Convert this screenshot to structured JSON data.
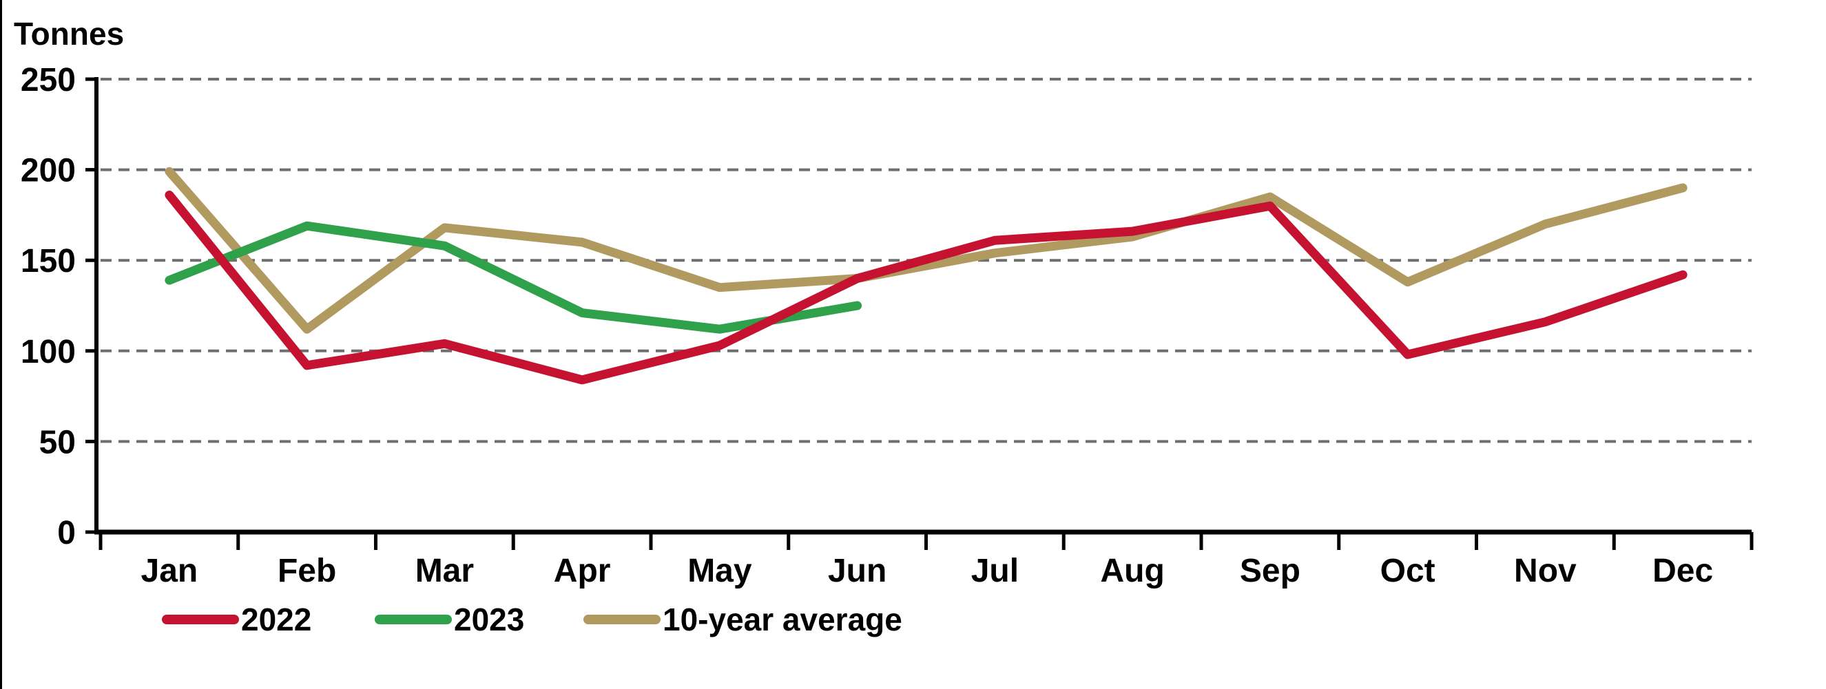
{
  "axis_title": "Tonnes",
  "colors": {
    "series_2022": "#c41230",
    "series_2023": "#2fa14b",
    "series_avg": "#b19a5f",
    "gridline": "#6f6f6f",
    "axis": "#000000",
    "text": "#000000",
    "background": "#ffffff"
  },
  "chart_data": {
    "type": "line",
    "title": "",
    "ylabel": "Tonnes",
    "xlabel": "",
    "ylim": [
      0,
      250
    ],
    "yticks": [
      0,
      50,
      100,
      150,
      200,
      250
    ],
    "grid": "horizontal dashed",
    "legend_position": "bottom-left",
    "categories": [
      "Jan",
      "Feb",
      "Mar",
      "Apr",
      "May",
      "Jun",
      "Jul",
      "Aug",
      "Sep",
      "Oct",
      "Nov",
      "Dec"
    ],
    "series": [
      {
        "name": "2022",
        "color_key": "series_2022",
        "values": [
          186,
          92,
          104,
          84,
          103,
          140,
          161,
          166,
          180,
          98,
          116,
          142
        ]
      },
      {
        "name": "2023",
        "color_key": "series_2023",
        "values": [
          139,
          169,
          158,
          121,
          112,
          125
        ]
      },
      {
        "name": "10-year average",
        "color_key": "series_avg",
        "values": [
          199,
          112,
          168,
          160,
          135,
          140,
          154,
          163,
          185,
          138,
          170,
          190
        ]
      }
    ]
  }
}
